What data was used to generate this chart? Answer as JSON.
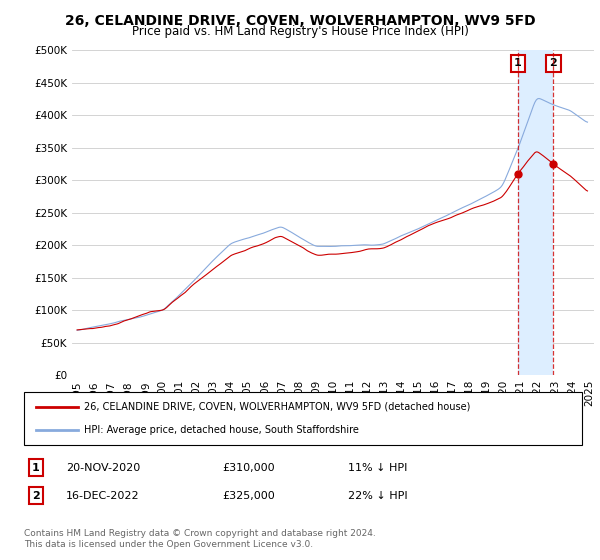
{
  "title": "26, CELANDINE DRIVE, COVEN, WOLVERHAMPTON, WV9 5FD",
  "subtitle": "Price paid vs. HM Land Registry's House Price Index (HPI)",
  "ytick_values": [
    0,
    50000,
    100000,
    150000,
    200000,
    250000,
    300000,
    350000,
    400000,
    450000,
    500000
  ],
  "ylim": [
    0,
    500000
  ],
  "hpi_color": "#88aadd",
  "price_color": "#cc0000",
  "marker1_label": "1",
  "marker1_date": "20-NOV-2020",
  "marker1_price": 310000,
  "marker1_hpi_pct": "11% ↓ HPI",
  "marker2_label": "2",
  "marker2_date": "16-DEC-2022",
  "marker2_price": 325000,
  "marker2_hpi_pct": "22% ↓ HPI",
  "legend_line1": "26, CELANDINE DRIVE, COVEN, WOLVERHAMPTON, WV9 5FD (detached house)",
  "legend_line2": "HPI: Average price, detached house, South Staffordshire",
  "footer": "Contains HM Land Registry data © Crown copyright and database right 2024.\nThis data is licensed under the Open Government Licence v3.0.",
  "background_color": "#ffffff",
  "grid_color": "#cccccc",
  "shade_color": "#ddeeff"
}
